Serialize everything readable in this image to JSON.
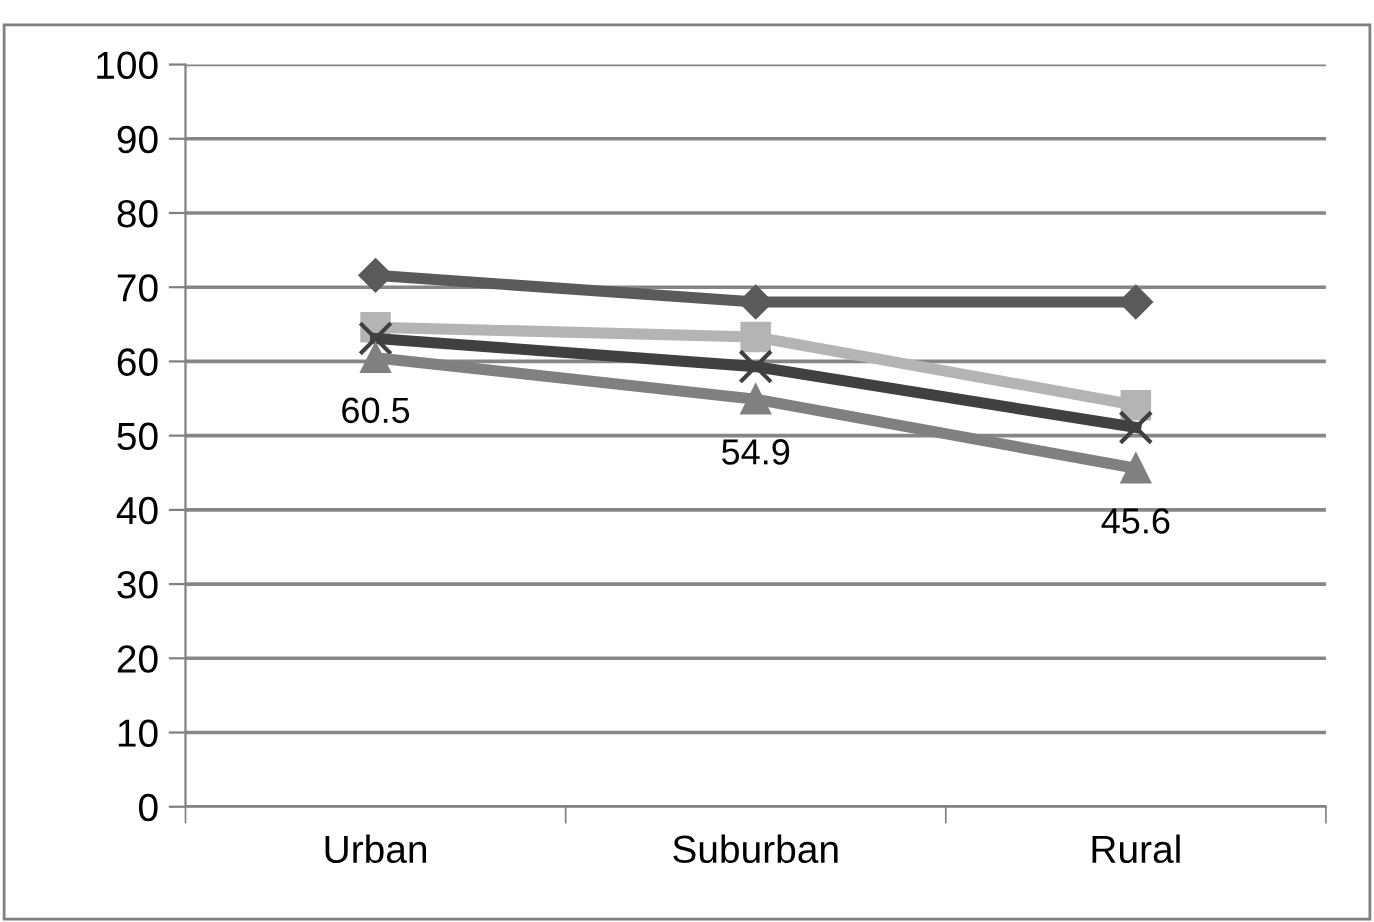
{
  "chart_data": {
    "type": "line",
    "categories": [
      "Urban",
      "Suburban",
      "Rural"
    ],
    "series": [
      {
        "color": "#5a5a5a",
        "marker": "diamond",
        "values": [
          71.6,
          68.0,
          68.0
        ]
      },
      {
        "color": "#b4b4b4",
        "marker": "square",
        "values": [
          64.6,
          63.3,
          54.1
        ]
      },
      {
        "color": "#404040",
        "marker": "cross",
        "values": [
          63.1,
          59.3,
          51.1
        ]
      },
      {
        "color": "#808080",
        "marker": "triangle",
        "values": [
          60.5,
          54.9,
          45.6
        ],
        "value_labels": [
          "60.5",
          "54.9",
          "45.6"
        ]
      }
    ],
    "ylim": [
      0,
      100
    ],
    "yticks": [
      0,
      10,
      20,
      30,
      40,
      50,
      60,
      70,
      80,
      90,
      100
    ],
    "grid": "y",
    "legend": false
  }
}
